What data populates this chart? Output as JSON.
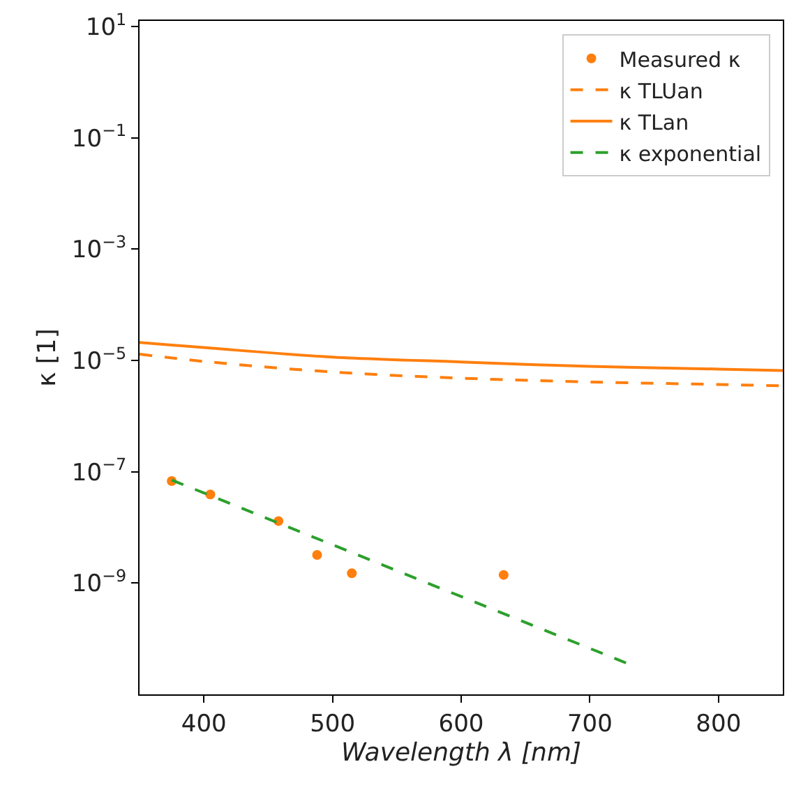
{
  "chart_data": {
    "type": "line",
    "xlabel": "Wavelength λ [nm]",
    "ylabel": "κ [1]",
    "log": "y",
    "xlim": [
      350,
      850
    ],
    "xticks": [
      400,
      500,
      600,
      700,
      800
    ],
    "ylim": [
      1e-11,
      12.6
    ],
    "yticks": [
      {
        "value": 10,
        "label": "10$^{1}$"
      },
      {
        "value": 0.1,
        "label": "10$^{−1}$"
      },
      {
        "value": 0.001,
        "label": "10$^{−3}$"
      },
      {
        "value": 1e-05,
        "label": "10$^{−5}$"
      },
      {
        "value": 1e-07,
        "label": "10$^{−7}$"
      },
      {
        "value": 1e-09,
        "label": "10$^{−9}$"
      }
    ],
    "legend": "top right",
    "series": [
      {
        "name": "Measured κ",
        "type": "scatter",
        "marker": "circle",
        "color": "#ff7f0e",
        "x": [
          375,
          405,
          458,
          488,
          515,
          633
        ],
        "values": [
          6.8e-08,
          3.9e-08,
          1.3e-08,
          3.2e-09,
          1.5e-09,
          1.4e-09
        ]
      },
      {
        "name": "κ TLUan",
        "line_style": "dashed",
        "color": "#ff7f0e",
        "x": [
          350,
          400,
          500,
          600,
          700,
          800,
          850
        ],
        "values": [
          1.3e-05,
          9.6e-06,
          6.2e-06,
          4.8e-06,
          4.1e-06,
          3.7e-06,
          3.5e-06
        ]
      },
      {
        "name": "κ TLan",
        "line_style": "solid",
        "color": "#ff7f0e",
        "x": [
          350,
          400,
          500,
          600,
          700,
          800,
          850
        ],
        "values": [
          2.1e-05,
          1.7e-05,
          1.15e-05,
          9.4e-06,
          7.8e-06,
          7e-06,
          6.6e-06
        ]
      },
      {
        "name": "κ exponential",
        "line_style": "dashed",
        "color": "#2ca02c",
        "x": [
          375,
          729
        ],
        "values": [
          7.1e-08,
          3.6e-11
        ]
      }
    ]
  }
}
